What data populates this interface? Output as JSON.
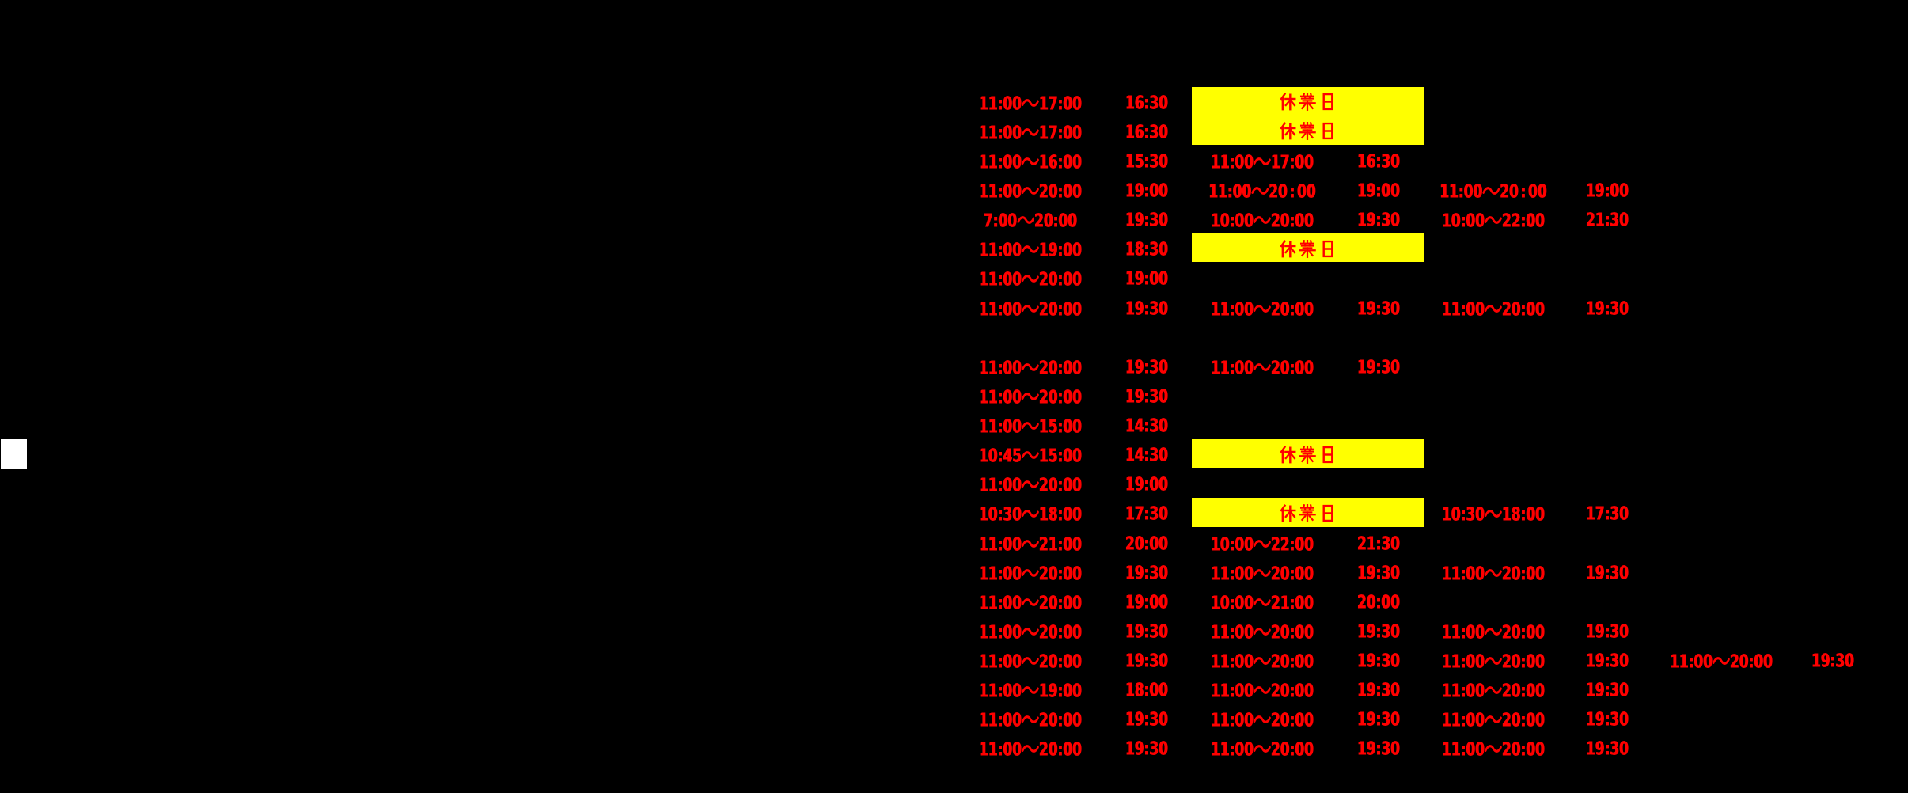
{
  "colors": {
    "background": "#000000",
    "hours_text": "#ff0000",
    "closed_cell_background": "#ffff00",
    "closed_cell_text": "#ff0000",
    "blank_cell": "#ffffff"
  },
  "labels": {
    "closed_day": "休業日"
  },
  "schedule": {
    "rows": [
      {
        "cells": [
          {
            "col": 1,
            "hours": "11:00～17:00",
            "last_order": "16:30"
          },
          {
            "col": 2,
            "closed": true
          }
        ]
      },
      {
        "cells": [
          {
            "col": 1,
            "hours": "11:00～17:00",
            "last_order": "16:30"
          },
          {
            "col": 2,
            "closed": true
          }
        ]
      },
      {
        "cells": [
          {
            "col": 1,
            "hours": "11:00～16:00",
            "last_order": "15:30"
          },
          {
            "col": 2,
            "hours": "11:00～17:00",
            "last_order": "16:30"
          }
        ]
      },
      {
        "cells": [
          {
            "col": 1,
            "hours": "11:00～20:00",
            "last_order": "19:00"
          },
          {
            "col": 2,
            "hours": "11:00～20：00",
            "last_order": "19:00"
          },
          {
            "col": 3,
            "hours": "11:00～20：00",
            "last_order": "19:00"
          }
        ]
      },
      {
        "cells": [
          {
            "col": 1,
            "hours": "7:00～20:00",
            "last_order": "19:30"
          },
          {
            "col": 2,
            "hours": "10:00～20:00",
            "last_order": "19:30"
          },
          {
            "col": 3,
            "hours": "10:00～22:00",
            "last_order": "21:30"
          }
        ]
      },
      {
        "cells": [
          {
            "col": 1,
            "hours": "11:00～19:00",
            "last_order": "18:30"
          },
          {
            "col": 2,
            "closed": true
          }
        ]
      },
      {
        "cells": [
          {
            "col": 1,
            "hours": "11:00～20:00",
            "last_order": "19:00"
          }
        ]
      },
      {
        "cells": [
          {
            "col": 1,
            "hours": "11:00～20:00",
            "last_order": "19:30"
          },
          {
            "col": 2,
            "hours": "11:00～20:00",
            "last_order": "19:30"
          },
          {
            "col": 3,
            "hours": "11:00～20:00",
            "last_order": "19:30"
          }
        ]
      },
      {
        "cells": []
      },
      {
        "cells": [
          {
            "col": 1,
            "hours": "11:00～20:00",
            "last_order": "19:30"
          },
          {
            "col": 2,
            "hours": "11:00～20:00",
            "last_order": "19:30"
          }
        ]
      },
      {
        "cells": [
          {
            "col": 1,
            "hours": "11:00～20:00",
            "last_order": "19:30"
          }
        ]
      },
      {
        "cells": [
          {
            "col": 1,
            "hours": "11:00～15:00",
            "last_order": "14:30"
          }
        ]
      },
      {
        "cells": [
          {
            "col": 1,
            "hours": "10:45～15:00",
            "last_order": "14:30"
          },
          {
            "col": 2,
            "closed": true
          }
        ]
      },
      {
        "cells": [
          {
            "col": 1,
            "hours": "11:00～20:00",
            "last_order": "19:00"
          }
        ]
      },
      {
        "cells": [
          {
            "col": 1,
            "hours": "10:30～18:00",
            "last_order": "17:30"
          },
          {
            "col": 2,
            "closed": true
          },
          {
            "col": 3,
            "hours": "10:30～18:00",
            "last_order": "17:30"
          }
        ]
      },
      {
        "cells": [
          {
            "col": 1,
            "hours": "11:00～21:00",
            "last_order": "20:00"
          },
          {
            "col": 2,
            "hours": "10:00～22:00",
            "last_order": "21:30"
          }
        ]
      },
      {
        "cells": [
          {
            "col": 1,
            "hours": "11:00～20:00",
            "last_order": "19:30"
          },
          {
            "col": 2,
            "hours": "11:00～20:00",
            "last_order": "19:30"
          },
          {
            "col": 3,
            "hours": "11:00～20:00",
            "last_order": "19:30"
          }
        ]
      },
      {
        "cells": [
          {
            "col": 1,
            "hours": "11:00～20:00",
            "last_order": "19:00"
          },
          {
            "col": 2,
            "hours": "10:00～21:00",
            "last_order": "20:00"
          }
        ]
      },
      {
        "cells": [
          {
            "col": 1,
            "hours": "11:00～20:00",
            "last_order": "19:30"
          },
          {
            "col": 2,
            "hours": "11:00～20:00",
            "last_order": "19:30"
          },
          {
            "col": 3,
            "hours": "11:00～20:00",
            "last_order": "19:30"
          }
        ]
      },
      {
        "cells": [
          {
            "col": 1,
            "hours": "11:00～20:00",
            "last_order": "19:30"
          },
          {
            "col": 2,
            "hours": "11:00～20:00",
            "last_order": "19:30"
          },
          {
            "col": 3,
            "hours": "11:00～20:00",
            "last_order": "19:30"
          },
          {
            "col": 4,
            "hours": "11:00～20:00",
            "last_order": "19:30"
          }
        ]
      },
      {
        "cells": [
          {
            "col": 1,
            "hours": "11:00～19:00",
            "last_order": "18:00"
          },
          {
            "col": 2,
            "hours": "11:00～20:00",
            "last_order": "19:30"
          },
          {
            "col": 3,
            "hours": "11:00～20:00",
            "last_order": "19:30"
          }
        ]
      },
      {
        "cells": [
          {
            "col": 1,
            "hours": "11:00～20:00",
            "last_order": "19:30"
          },
          {
            "col": 2,
            "hours": "11:00～20:00",
            "last_order": "19:30"
          },
          {
            "col": 3,
            "hours": "11:00～20:00",
            "last_order": "19:30"
          }
        ]
      },
      {
        "cells": [
          {
            "col": 1,
            "hours": "11:00～20:00",
            "last_order": "19:30"
          },
          {
            "col": 2,
            "hours": "11:00～20:00",
            "last_order": "19:30"
          },
          {
            "col": 3,
            "hours": "11:00～20:00",
            "last_order": "19:30"
          }
        ]
      }
    ]
  }
}
